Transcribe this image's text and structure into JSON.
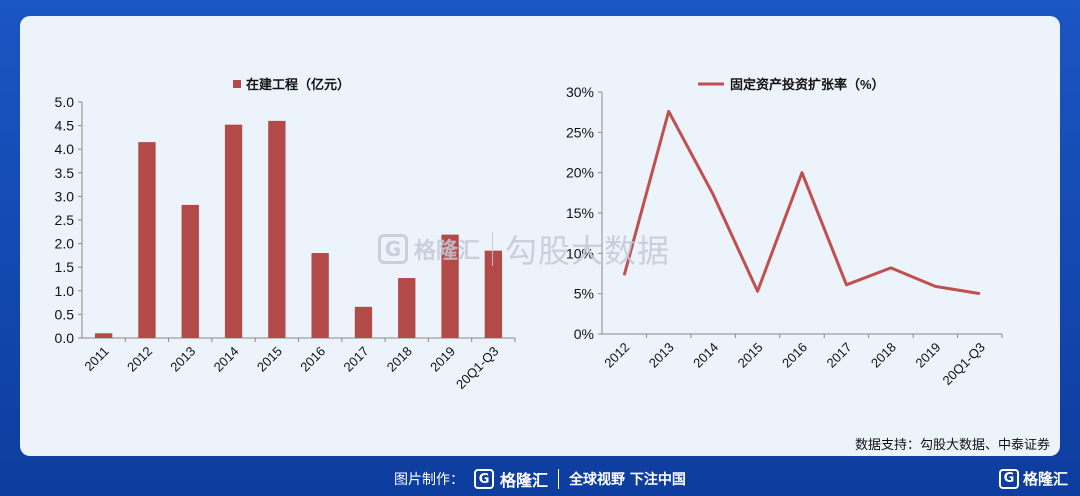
{
  "watermark": {
    "logo_letter": "G",
    "brand": "格隆汇",
    "text": "勾股大数据"
  },
  "source_text": "数据支持：勾股大数据、中泰证券",
  "footer": {
    "credit_label": "图片制作：",
    "logo_letter": "G",
    "brand": "格隆汇",
    "slogan": "全球视野 下注中国"
  },
  "corner": {
    "logo_letter": "G",
    "brand": "格隆汇"
  },
  "colors": {
    "bar": "#b24a48",
    "line": "#c0504d",
    "axis": "#8a8a8a"
  },
  "chart_data": [
    {
      "type": "bar",
      "legend": "在建工程（亿元）",
      "categories": [
        "2011",
        "2012",
        "2013",
        "2014",
        "2015",
        "2016",
        "2017",
        "2018",
        "2019",
        "20Q1-Q3"
      ],
      "values": [
        0.1,
        4.15,
        2.82,
        4.52,
        4.6,
        1.8,
        0.66,
        1.27,
        2.19,
        1.85
      ],
      "ylim": [
        0,
        5.0
      ],
      "yticks": [
        "0.0",
        "0.5",
        "1.0",
        "1.5",
        "2.0",
        "2.5",
        "3.0",
        "3.5",
        "4.0",
        "4.5",
        "5.0"
      ],
      "grid": false,
      "legend_position": "top"
    },
    {
      "type": "line",
      "legend": "固定资产投资扩张率（%）",
      "categories": [
        "2012",
        "2013",
        "2014",
        "2015",
        "2016",
        "2017",
        "2018",
        "2019",
        "20Q1-Q3"
      ],
      "values": [
        7.3,
        27.6,
        17.3,
        5.3,
        20.0,
        6.1,
        8.2,
        5.9,
        5.0
      ],
      "ylim": [
        0,
        30
      ],
      "yticks": [
        "0%",
        "5%",
        "10%",
        "15%",
        "20%",
        "25%",
        "30%"
      ],
      "grid": false,
      "legend_position": "top"
    }
  ]
}
